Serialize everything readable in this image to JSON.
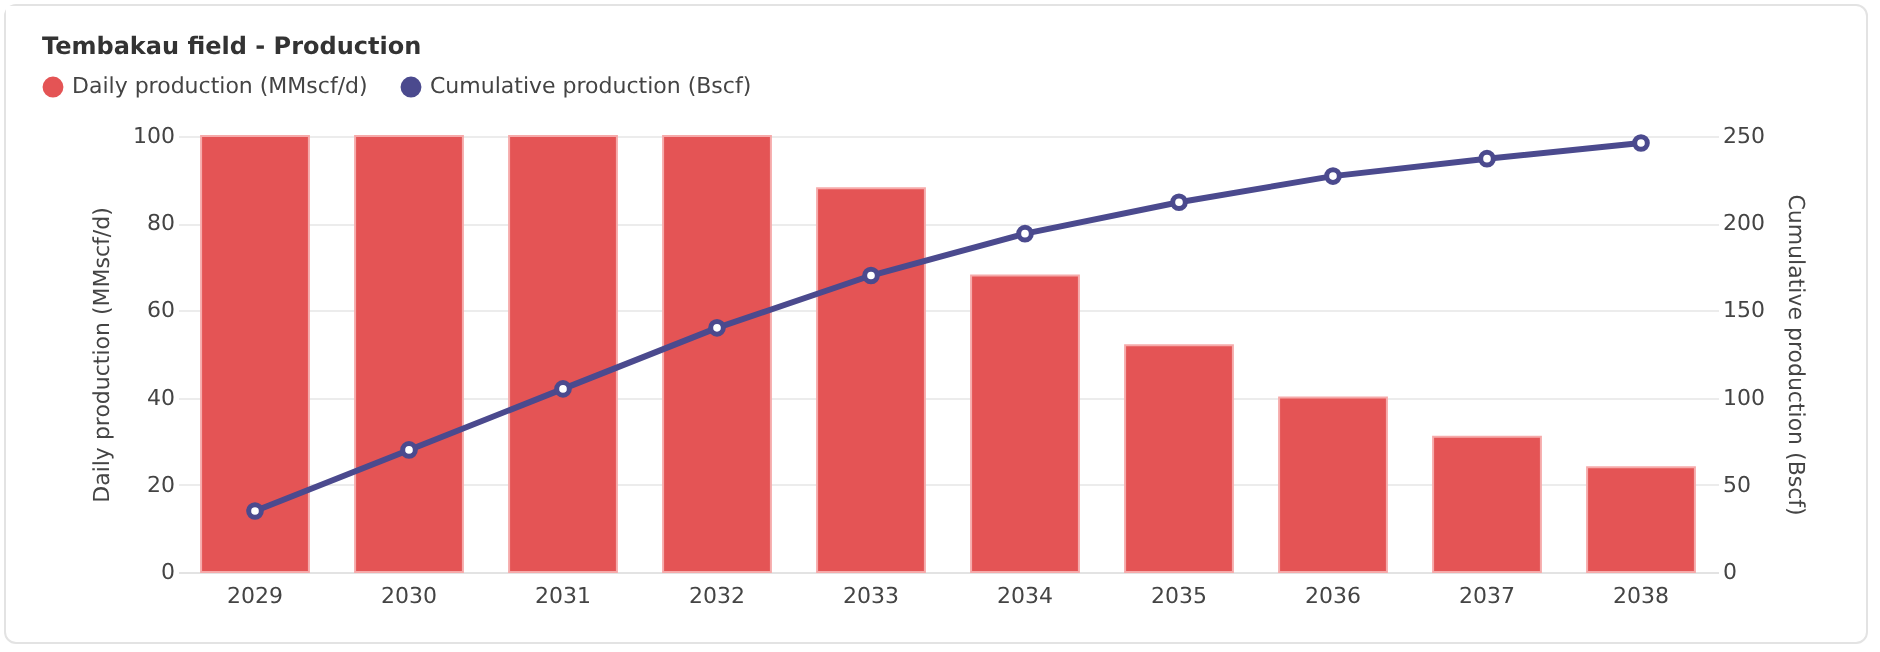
{
  "chart_data": {
    "type": "bar",
    "title": "Tembakau field - Production",
    "categories": [
      "2029",
      "2030",
      "2031",
      "2032",
      "2033",
      "2034",
      "2035",
      "2036",
      "2037",
      "2038"
    ],
    "series": [
      {
        "name": "Daily production (MMscf/d)",
        "color": "#e45455",
        "values": [
          100,
          100,
          100,
          100,
          88,
          68,
          52,
          40,
          31,
          24
        ]
      },
      {
        "name": "Cumulative production (Bscf)",
        "type": "line",
        "axis": "y2",
        "color": "#4b4a8e",
        "values": [
          35,
          70,
          105,
          140,
          170,
          194,
          212,
          227,
          237,
          246
        ]
      }
    ],
    "ylabel": "Daily production (MMscf/d)",
    "y2label": "Cumulative production (Bscf)",
    "ylim": [
      0,
      100
    ],
    "yticks": [
      0,
      20,
      40,
      60,
      80,
      100
    ],
    "y2lim": [
      0,
      250
    ],
    "y2ticks": [
      0,
      50,
      100,
      150,
      200,
      250
    ],
    "grid": "y",
    "legend": "top left",
    "marker": "circle",
    "line_style": "solid"
  }
}
